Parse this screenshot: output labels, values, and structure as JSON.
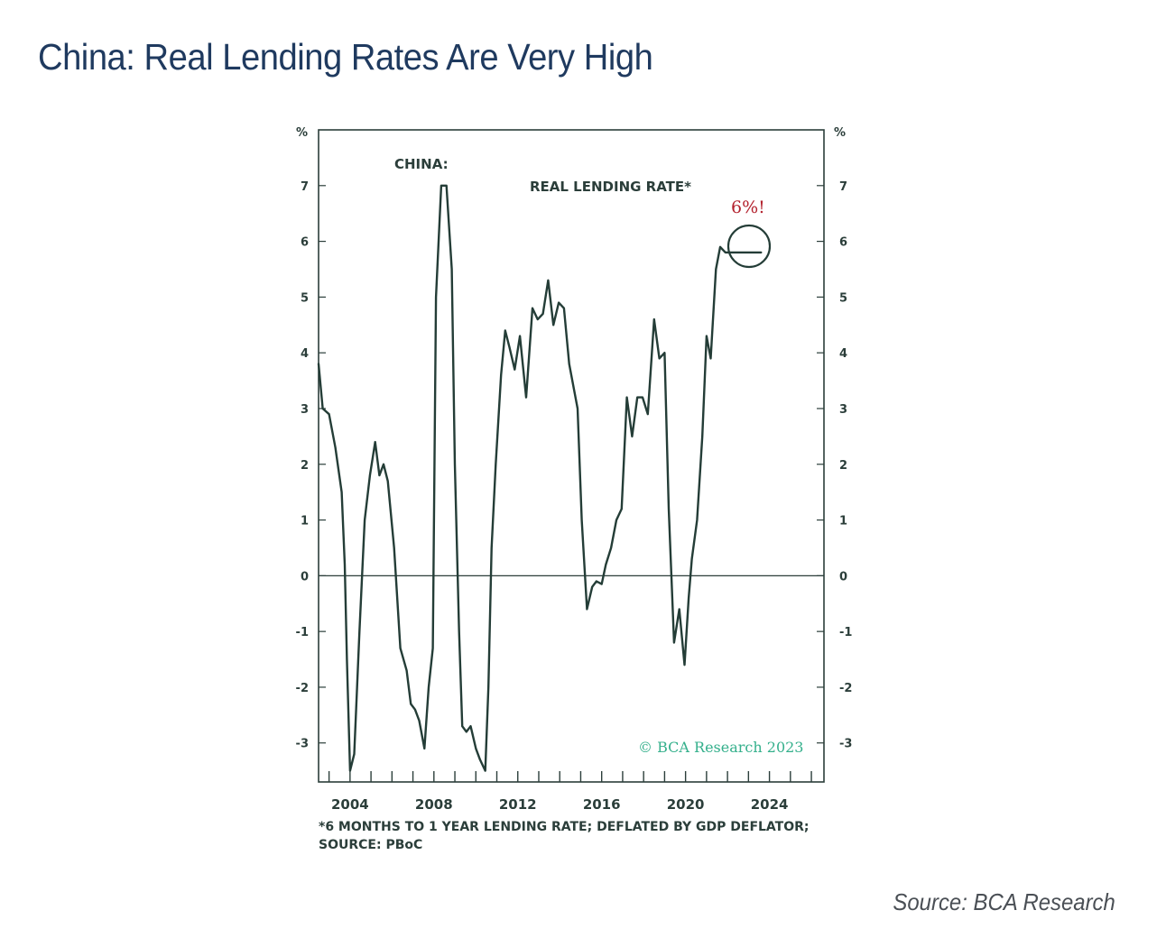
{
  "page": {
    "title": "China: Real Lending Rates Are Very High",
    "source": "Source: BCA Research"
  },
  "chart_data": {
    "type": "line",
    "panel_title": "CHINA:",
    "series_label": "REAL LENDING RATE*",
    "ylabel_left": "%",
    "ylabel_right": "%",
    "ylim": [
      -3.7,
      8.0
    ],
    "xlim": [
      2002.5,
      2026.6
    ],
    "yticks": [
      -3,
      -2,
      -1,
      0,
      1,
      2,
      3,
      4,
      5,
      6,
      7
    ],
    "xtick_labels": [
      "2004",
      "2008",
      "2012",
      "2016",
      "2020",
      "2024"
    ],
    "xtick_values": [
      2004,
      2008,
      2012,
      2016,
      2020,
      2024
    ],
    "callout": "6%!",
    "watermark": "© BCA Research 2023",
    "footnote_line1": "*6 MONTHS TO 1 YEAR LENDING RATE; DEFLATED BY GDP DEFLATOR;",
    "footnote_line2": "SOURCE: PBoC",
    "colors": {
      "line": "#243d37",
      "callout": "#b3222e",
      "watermark": "#35b08c",
      "frame": "#2b3e3a"
    },
    "series": [
      {
        "x": [
          2002.5,
          2002.7,
          2003.0,
          2003.3,
          2003.6,
          2003.75,
          2003.85,
          2004.0,
          2004.2,
          2004.45,
          2004.7,
          2004.95,
          2005.2,
          2005.4,
          2005.6,
          2005.8,
          2006.1,
          2006.4,
          2006.7,
          2006.9,
          2007.1,
          2007.3,
          2007.55,
          2007.75,
          2007.95,
          2008.1,
          2008.35,
          2008.6,
          2008.85,
          2009.0,
          2009.2,
          2009.35,
          2009.55,
          2009.75,
          2010.0,
          2010.2,
          2010.45,
          2010.6,
          2010.75,
          2010.95,
          2011.2,
          2011.4,
          2011.6,
          2011.85,
          2012.1,
          2012.4,
          2012.7,
          2012.95,
          2013.2,
          2013.45,
          2013.7,
          2013.95,
          2014.2,
          2014.45,
          2014.6,
          2014.85,
          2015.05,
          2015.3,
          2015.55,
          2015.75,
          2016.0,
          2016.2,
          2016.45,
          2016.7,
          2016.95,
          2017.2,
          2017.45,
          2017.7,
          2017.95,
          2018.2,
          2018.5,
          2018.75,
          2019.0,
          2019.2,
          2019.45,
          2019.7,
          2019.95,
          2020.15,
          2020.3,
          2020.55,
          2020.8,
          2021.0,
          2021.2,
          2021.45,
          2021.65,
          2021.9,
          2022.1,
          2022.35,
          2022.6,
          2022.8,
          2023.0,
          2023.2,
          2023.4,
          2023.6
        ],
        "y": [
          3.8,
          3.0,
          2.9,
          2.3,
          1.5,
          0.2,
          -1.5,
          -3.5,
          -3.2,
          -1.0,
          1.0,
          1.8,
          2.4,
          1.8,
          2.0,
          1.7,
          0.5,
          -1.3,
          -1.7,
          -2.3,
          -2.4,
          -2.6,
          -3.1,
          -2.0,
          -1.3,
          5.0,
          7.0,
          7.0,
          5.5,
          2.0,
          -1.0,
          -2.7,
          -2.8,
          -2.7,
          -3.1,
          -3.3,
          -3.5,
          -2.0,
          0.5,
          2.0,
          3.6,
          4.4,
          4.1,
          3.7,
          4.3,
          3.2,
          4.8,
          4.6,
          4.7,
          5.3,
          4.5,
          4.9,
          4.8,
          3.8,
          3.5,
          3.0,
          1.0,
          -0.6,
          -0.2,
          -0.1,
          -0.15,
          0.2,
          0.5,
          1.0,
          1.2,
          3.2,
          2.5,
          3.2,
          3.2,
          2.9,
          4.6,
          3.9,
          4.0,
          1.2,
          -1.2,
          -0.6,
          -1.6,
          -0.4,
          0.3,
          1.0,
          2.5,
          4.3,
          3.9,
          5.5,
          5.9,
          5.8,
          5.8,
          5.8,
          5.8,
          5.8,
          5.8,
          5.8,
          5.8,
          5.8
        ]
      }
    ]
  }
}
